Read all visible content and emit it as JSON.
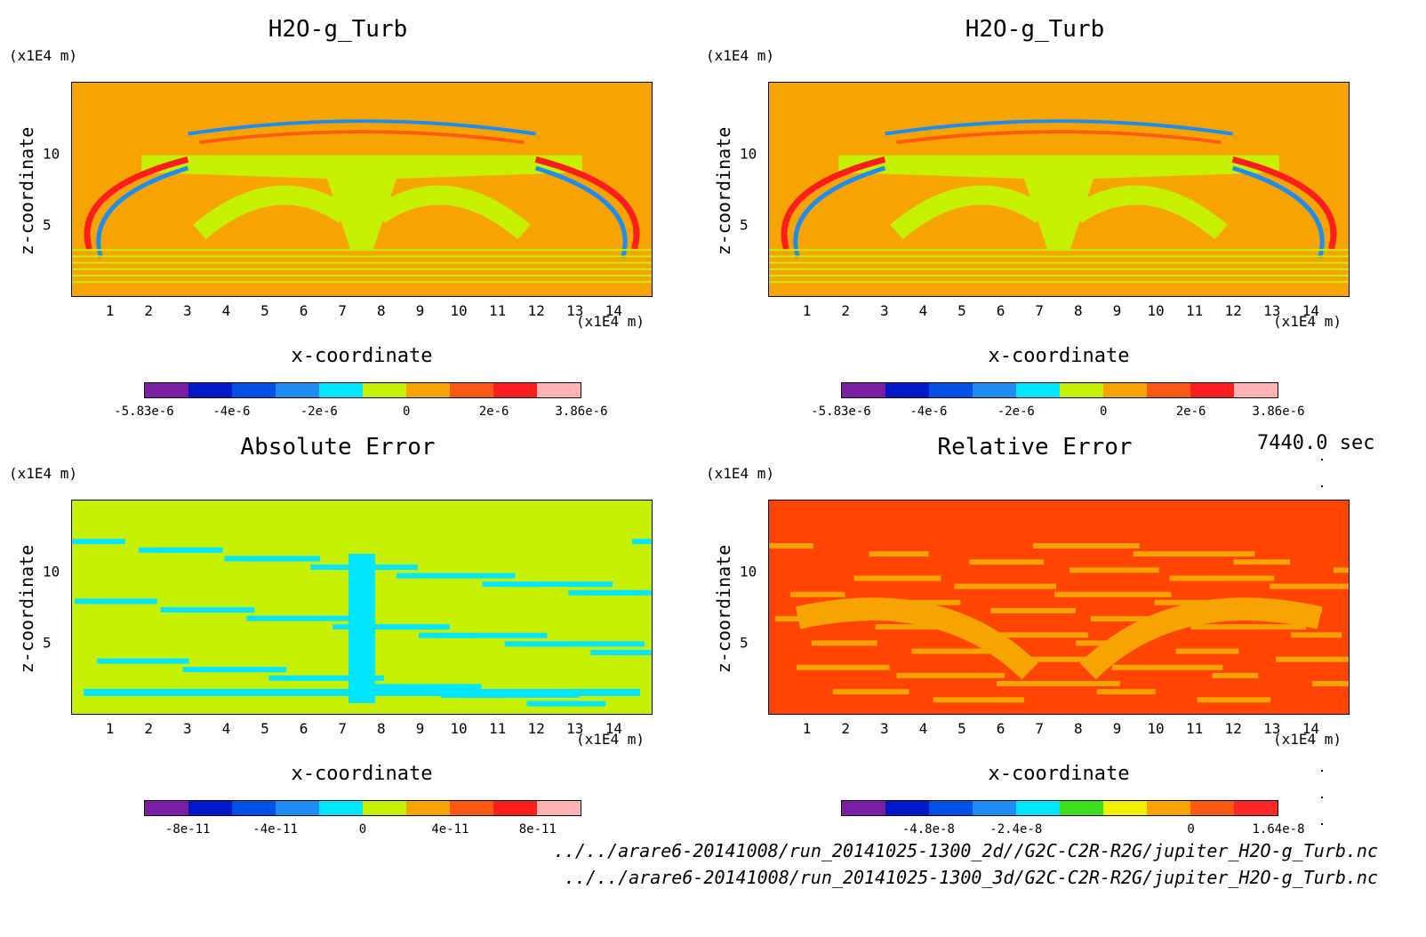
{
  "time_label": "7440.0 sec",
  "file_paths": [
    "../../arare6-20141008/run_20141025-1300_2d//G2C-C2R-R2G/jupiter_H2O-g_Turb.nc",
    "../../arare6-20141008/run_20141025-1300_3d/G2C-C2R-R2G/jupiter_H2O-g_Turb.nc"
  ],
  "colors": {
    "background_field_turb": "#f7a400",
    "background_field_abs": "#c5f000",
    "background_field_rel": "#ff4500"
  },
  "chart_data": [
    {
      "type": "heatmap",
      "title": "H2O-g_Turb",
      "xlabel": "x-coordinate",
      "ylabel": "z-coordinate",
      "x_unit": "(x1E4 m)",
      "y_unit": "(x1E4 m)",
      "xlim": [
        0,
        15
      ],
      "ylim": [
        0,
        15
      ],
      "x_ticks": [
        "1",
        "2",
        "3",
        "4",
        "5",
        "6",
        "7",
        "8",
        "9",
        "10",
        "11",
        "12",
        "13",
        "14"
      ],
      "y_ticks": [
        "5",
        "10"
      ],
      "colorbar": {
        "colors": [
          "#7b1fa2",
          "#0019c8",
          "#0050e6",
          "#1e8cf0",
          "#00e6ff",
          "#c5f000",
          "#f7a400",
          "#ff5a14",
          "#ff1e1e",
          "#ffb4b4"
        ],
        "tick_labels": [
          "-5.83e-6",
          "-4e-6",
          "-2e-6",
          "0",
          "2e-6",
          "3.86e-6"
        ],
        "range": [
          -5.83e-06,
          3.86e-06
        ]
      }
    },
    {
      "type": "heatmap",
      "title": "H2O-g_Turb",
      "xlabel": "x-coordinate",
      "ylabel": "z-coordinate",
      "x_unit": "(x1E4 m)",
      "y_unit": "(x1E4 m)",
      "xlim": [
        0,
        15
      ],
      "ylim": [
        0,
        15
      ],
      "x_ticks": [
        "1",
        "2",
        "3",
        "4",
        "5",
        "6",
        "7",
        "8",
        "9",
        "10",
        "11",
        "12",
        "13",
        "14"
      ],
      "y_ticks": [
        "5",
        "10"
      ],
      "colorbar": {
        "colors": [
          "#7b1fa2",
          "#0019c8",
          "#0050e6",
          "#1e8cf0",
          "#00e6ff",
          "#c5f000",
          "#f7a400",
          "#ff5a14",
          "#ff1e1e",
          "#ffb4b4"
        ],
        "tick_labels": [
          "-5.83e-6",
          "-4e-6",
          "-2e-6",
          "0",
          "2e-6",
          "3.86e-6"
        ],
        "range": [
          -5.83e-06,
          3.86e-06
        ]
      }
    },
    {
      "type": "heatmap",
      "title": "Absolute Error",
      "xlabel": "x-coordinate",
      "ylabel": "z-coordinate",
      "x_unit": "(x1E4 m)",
      "y_unit": "(x1E4 m)",
      "xlim": [
        0,
        15
      ],
      "ylim": [
        0,
        15
      ],
      "x_ticks": [
        "1",
        "2",
        "3",
        "4",
        "5",
        "6",
        "7",
        "8",
        "9",
        "10",
        "11",
        "12",
        "13",
        "14"
      ],
      "y_ticks": [
        "5",
        "10"
      ],
      "colorbar": {
        "colors": [
          "#7b1fa2",
          "#0019c8",
          "#0050e6",
          "#1e8cf0",
          "#00e6ff",
          "#c5f000",
          "#f7a400",
          "#ff5a14",
          "#ff1e1e",
          "#ffb4b4"
        ],
        "tick_labels": [
          "-8e-11",
          "-4e-11",
          "0",
          "4e-11",
          "8e-11"
        ]
      }
    },
    {
      "type": "heatmap",
      "title": "Relative Error",
      "xlabel": "x-coordinate",
      "ylabel": "z-coordinate",
      "x_unit": "(x1E4 m)",
      "y_unit": "(x1E4 m)",
      "xlim": [
        0,
        15
      ],
      "ylim": [
        0,
        15
      ],
      "x_ticks": [
        "1",
        "2",
        "3",
        "4",
        "5",
        "6",
        "7",
        "8",
        "9",
        "10",
        "11",
        "12",
        "13",
        "14"
      ],
      "y_ticks": [
        "5",
        "10"
      ],
      "colorbar": {
        "colors": [
          "#7b1fa2",
          "#0019c8",
          "#0050e6",
          "#1e8cf0",
          "#00e6ff",
          "#3cdc1e",
          "#f0f000",
          "#f7a400",
          "#ff5a14",
          "#ff2828"
        ],
        "tick_labels": [
          "-4.8e-8",
          "-2.4e-8",
          "0",
          "1.64e-8"
        ],
        "range_max": 1.64e-08
      }
    }
  ]
}
